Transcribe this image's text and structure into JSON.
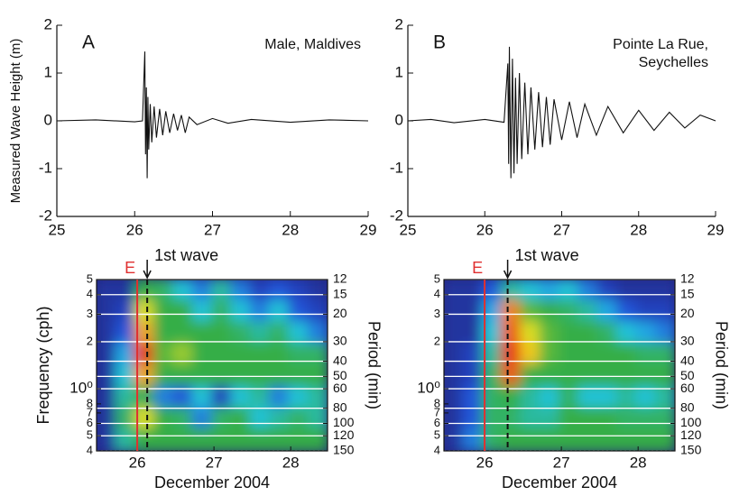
{
  "chart_data": [
    {
      "type": "line",
      "label": "A",
      "title": [
        "Male, Maldives"
      ],
      "ylabel": "Measured Wave Height (m)",
      "color": "#111111",
      "x": [
        25,
        25.5,
        26.0,
        26.1,
        26.13,
        26.14,
        26.15,
        26.16,
        26.17,
        26.18,
        26.2,
        26.22,
        26.25,
        26.28,
        26.32,
        26.36,
        26.4,
        26.45,
        26.5,
        26.55,
        26.6,
        26.65,
        26.7,
        26.8,
        27.0,
        27.2,
        27.5,
        28.0,
        28.5,
        29
      ],
      "values": [
        0,
        0.02,
        -0.02,
        0,
        1.45,
        -0.7,
        0.7,
        -1.2,
        0.5,
        -0.6,
        0.35,
        -0.45,
        0.3,
        -0.35,
        0.25,
        -0.3,
        0.2,
        -0.25,
        0.15,
        -0.2,
        0.12,
        -0.25,
        0.08,
        -0.08,
        0.05,
        -0.05,
        0.03,
        -0.03,
        0.02,
        0
      ],
      "xlim": [
        25,
        29
      ],
      "xticks": [
        25,
        26,
        27,
        28,
        29
      ],
      "ylim": [
        -2,
        2
      ],
      "yticks": [
        -2,
        -1,
        0,
        1,
        2
      ]
    },
    {
      "type": "line",
      "label": "B",
      "title": [
        "Pointe La Rue,",
        "Seychelles"
      ],
      "color": "#111111",
      "x": [
        25,
        25.3,
        25.6,
        26.0,
        26.25,
        26.3,
        26.31,
        26.32,
        26.34,
        26.36,
        26.38,
        26.4,
        26.42,
        26.45,
        26.48,
        26.52,
        26.56,
        26.6,
        26.65,
        26.7,
        26.75,
        26.8,
        26.85,
        26.9,
        27.0,
        27.1,
        27.2,
        27.3,
        27.45,
        27.6,
        27.8,
        28.0,
        28.2,
        28.4,
        28.6,
        28.8,
        29
      ],
      "values": [
        0,
        0.03,
        -0.04,
        0.03,
        -0.03,
        1.2,
        -0.9,
        1.55,
        -1.2,
        1.3,
        -1.1,
        0.9,
        -0.9,
        1.0,
        -0.8,
        0.8,
        -0.7,
        0.7,
        -0.6,
        0.6,
        -0.55,
        0.5,
        -0.5,
        0.45,
        -0.4,
        0.4,
        -0.35,
        0.35,
        -0.3,
        0.3,
        -0.25,
        0.22,
        -0.2,
        0.18,
        -0.15,
        0.12,
        0
      ],
      "xlim": [
        25,
        29
      ],
      "xticks": [
        25,
        26,
        27,
        28,
        29
      ],
      "ylim": [
        -2,
        2
      ],
      "yticks": [
        -2,
        -1,
        0,
        1,
        2
      ]
    },
    {
      "type": "heatmap",
      "ylabel": "Frequency (cph)",
      "y2label": "Period (min)",
      "xlabel": "December 2004",
      "xlim": [
        25.47,
        28.48
      ],
      "xticks": [
        26,
        27,
        28
      ],
      "ylim": [
        0.4,
        5
      ],
      "ylog": true,
      "yticks": [
        5,
        4,
        3,
        2,
        {
          "value": 1,
          "label": "10⁰"
        },
        {
          "value": 0.8,
          "label": "8"
        },
        {
          "value": 0.7,
          "label": "7"
        },
        {
          "value": 0.6,
          "label": "6"
        },
        {
          "value": 0.5,
          "label": "5"
        },
        {
          "value": 0.4,
          "label": "4"
        }
      ],
      "y2lim": [
        150,
        12
      ],
      "y2ticks": [
        12,
        15,
        20,
        30,
        40,
        50,
        60,
        80,
        100,
        120,
        150
      ],
      "zlim": [
        0,
        1
      ],
      "colorscale": [
        "#262680",
        "#2050d8",
        "#22c4e6",
        "#34ae46",
        "#34ae46",
        "#eee21c",
        "#f07a18",
        "#e01010"
      ],
      "annotations": [
        {
          "text": "E",
          "x": 26.0,
          "color": "#e03030"
        },
        {
          "text": "1st wave",
          "x": 26.13,
          "color": "#111111"
        }
      ],
      "z": [
        [
          0.05,
          0.05,
          0.55,
          0.4,
          0.3,
          0.2,
          0.35,
          0.2,
          0.1,
          0.15,
          0.1,
          0.05
        ],
        [
          0.05,
          0.1,
          0.7,
          0.5,
          0.45,
          0.3,
          0.4,
          0.3,
          0.2,
          0.3,
          0.15,
          0.1
        ],
        [
          0.05,
          0.15,
          0.8,
          0.5,
          0.45,
          0.45,
          0.45,
          0.4,
          0.35,
          0.4,
          0.3,
          0.2
        ],
        [
          0.05,
          0.25,
          0.95,
          0.6,
          0.65,
          0.5,
          0.45,
          0.45,
          0.45,
          0.45,
          0.4,
          0.4
        ],
        [
          0.05,
          0.3,
          0.8,
          0.5,
          0.45,
          0.45,
          0.45,
          0.45,
          0.45,
          0.45,
          0.45,
          0.45
        ],
        [
          0.05,
          0.35,
          0.55,
          0.2,
          0.15,
          0.3,
          0.1,
          0.3,
          0.35,
          0.2,
          0.3,
          0.35
        ],
        [
          0.05,
          0.4,
          0.7,
          0.45,
          0.4,
          0.2,
          0.4,
          0.45,
          0.3,
          0.35,
          0.4,
          0.35
        ],
        [
          0.05,
          0.35,
          0.5,
          0.45,
          0.45,
          0.45,
          0.45,
          0.45,
          0.45,
          0.45,
          0.45,
          0.45
        ]
      ]
    },
    {
      "type": "heatmap",
      "y2label": "Period (min)",
      "xlabel": "December 2004",
      "xlim": [
        25.47,
        28.48
      ],
      "xticks": [
        26,
        27,
        28
      ],
      "ylim": [
        0.4,
        5
      ],
      "ylog": true,
      "yticks": [
        5,
        4,
        3,
        2,
        {
          "value": 1,
          "label": "10⁰"
        },
        {
          "value": 0.8,
          "label": "8"
        },
        {
          "value": 0.7,
          "label": "7"
        },
        {
          "value": 0.6,
          "label": "6"
        },
        {
          "value": 0.5,
          "label": "5"
        },
        {
          "value": 0.4,
          "label": "4"
        }
      ],
      "y2lim": [
        150,
        12
      ],
      "y2ticks": [
        12,
        15,
        20,
        30,
        40,
        50,
        60,
        80,
        100,
        120,
        150
      ],
      "zlim": [
        0,
        1
      ],
      "colorscale": [
        "#262680",
        "#2050d8",
        "#22c4e6",
        "#34ae46",
        "#34ae46",
        "#eee21c",
        "#f07a18",
        "#e01010"
      ],
      "annotations": [
        {
          "text": "E",
          "x": 26.0,
          "color": "#e03030"
        },
        {
          "text": "1st wave",
          "x": 26.3,
          "color": "#111111"
        }
      ],
      "z": [
        [
          0.05,
          0.05,
          0.15,
          0.35,
          0.3,
          0.25,
          0.3,
          0.2,
          0.1,
          0.05,
          0.05,
          0.05
        ],
        [
          0.05,
          0.05,
          0.25,
          0.85,
          0.6,
          0.45,
          0.4,
          0.35,
          0.25,
          0.15,
          0.1,
          0.1
        ],
        [
          0.05,
          0.05,
          0.3,
          0.9,
          0.7,
          0.6,
          0.5,
          0.45,
          0.4,
          0.3,
          0.25,
          0.2
        ],
        [
          0.05,
          0.1,
          0.35,
          0.95,
          0.75,
          0.6,
          0.55,
          0.5,
          0.45,
          0.45,
          0.4,
          0.4
        ],
        [
          0.05,
          0.1,
          0.4,
          0.9,
          0.5,
          0.45,
          0.45,
          0.45,
          0.45,
          0.45,
          0.45,
          0.45
        ],
        [
          0.05,
          0.15,
          0.4,
          0.45,
          0.35,
          0.3,
          0.4,
          0.3,
          0.3,
          0.35,
          0.3,
          0.35
        ],
        [
          0.05,
          0.15,
          0.4,
          0.4,
          0.35,
          0.35,
          0.45,
          0.45,
          0.45,
          0.4,
          0.4,
          0.4
        ],
        [
          0.05,
          0.2,
          0.4,
          0.45,
          0.45,
          0.45,
          0.45,
          0.45,
          0.45,
          0.45,
          0.45,
          0.45
        ]
      ]
    }
  ]
}
